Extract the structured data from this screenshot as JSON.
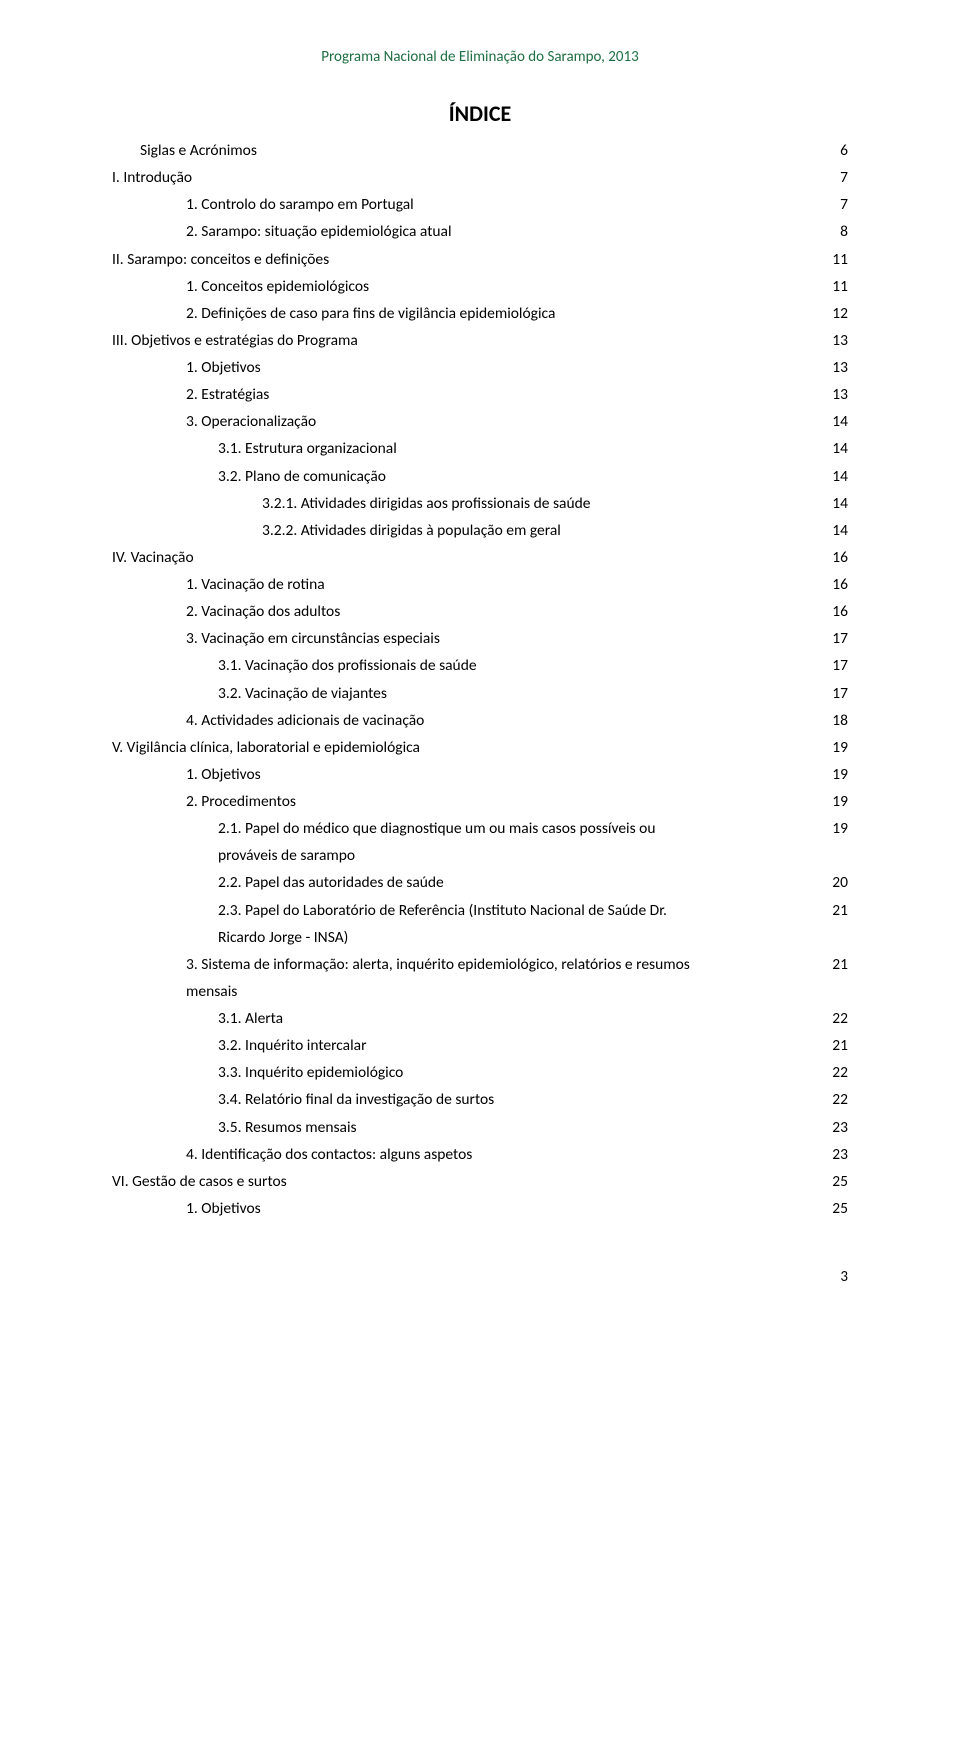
{
  "header": "Programa Nacional de Eliminação do Sarampo, 2013",
  "title": "ÍNDICE",
  "colors": {
    "header_text": "#1f6e43",
    "body_text": "#000000",
    "background": "#ffffff"
  },
  "typography": {
    "body_fontsize_pt": 11.5,
    "title_fontsize_pt": 16,
    "font_family": "Calibri"
  },
  "page_number": "3",
  "toc": [
    {
      "label": "Siglas e Acrónimos",
      "page": "6",
      "indent": "ind-0"
    },
    {
      "label": "I.   Introdução",
      "page": "7",
      "indent": "roman"
    },
    {
      "label": "1.   Controlo do sarampo em Portugal",
      "page": "7",
      "indent": "ind-1"
    },
    {
      "label": "2.   Sarampo: situação epidemiológica atual",
      "page": "8",
      "indent": "ind-1"
    },
    {
      "label": "II.  Sarampo: conceitos e definições",
      "page": "11",
      "indent": "roman"
    },
    {
      "label": "1.   Conceitos epidemiológicos",
      "page": "11",
      "indent": "ind-1"
    },
    {
      "label": "2.   Definições de caso para fins de vigilância epidemiológica",
      "page": "12",
      "indent": "ind-1"
    },
    {
      "label": "III. Objetivos e estratégias do Programa",
      "page": "13",
      "indent": "roman"
    },
    {
      "label": "1.   Objetivos",
      "page": "13",
      "indent": "ind-1"
    },
    {
      "label": "2.   Estratégias",
      "page": "13",
      "indent": "ind-1"
    },
    {
      "label": "3.   Operacionalização",
      "page": "14",
      "indent": "ind-1"
    },
    {
      "label": "3.1. Estrutura organizacional",
      "page": "14",
      "indent": "ind-2"
    },
    {
      "label": "3.2. Plano de comunicação",
      "page": "14",
      "indent": "ind-2"
    },
    {
      "label": "3.2.1. Atividades dirigidas aos profissionais de saúde",
      "page": "14",
      "indent": "ind-3"
    },
    {
      "label": "3.2.2. Atividades dirigidas à população em geral",
      "page": "14",
      "indent": "ind-3"
    },
    {
      "label": "IV. Vacinação",
      "page": "16",
      "indent": "roman"
    },
    {
      "label": "1.   Vacinação de rotina",
      "page": "16",
      "indent": "ind-1"
    },
    {
      "label": "2.   Vacinação dos adultos",
      "page": "16",
      "indent": "ind-1"
    },
    {
      "label": "3.   Vacinação em circunstâncias especiais",
      "page": "17",
      "indent": "ind-1"
    },
    {
      "label": "3.1. Vacinação dos profissionais de saúde",
      "page": "17",
      "indent": "ind-2"
    },
    {
      "label": "3.2. Vacinação de viajantes",
      "page": "17",
      "indent": "ind-2"
    },
    {
      "label": "4.   Actividades adicionais de vacinação",
      "page": "18",
      "indent": "ind-1"
    },
    {
      "label": "V.  Vigilância clínica, laboratorial e epidemiológica",
      "page": "19",
      "indent": "roman"
    },
    {
      "label": "1.   Objetivos",
      "page": "19",
      "indent": "ind-1"
    },
    {
      "label": "2.   Procedimentos",
      "page": "19",
      "indent": "ind-1"
    },
    {
      "label": "2.1. Papel do médico que diagnostique um ou mais casos possíveis ou prováveis de sarampo",
      "page": "19",
      "indent": "ind-2",
      "multiline": true
    },
    {
      "label": "2.2. Papel das autoridades de saúde",
      "page": "20",
      "indent": "ind-2"
    },
    {
      "label": "2.3. Papel do Laboratório de Referência (Instituto Nacional de Saúde Dr. Ricardo Jorge - INSA)",
      "page": "21",
      "indent": "ind-2",
      "multiline": true
    },
    {
      "label": "3.   Sistema de informação: alerta, inquérito epidemiológico, relatórios e resumos mensais",
      "page": "21",
      "indent": "ind-1",
      "multiline1": true
    },
    {
      "label": "3.1. Alerta",
      "page": "22",
      "indent": "ind-2"
    },
    {
      "label": "3.2. Inquérito intercalar",
      "page": "21",
      "indent": "ind-2"
    },
    {
      "label": "3.3. Inquérito epidemiológico",
      "page": "22",
      "indent": "ind-2"
    },
    {
      "label": "3.4. Relatório final da investigação de surtos",
      "page": "22",
      "indent": "ind-2"
    },
    {
      "label": "3.5. Resumos mensais",
      "page": "23",
      "indent": "ind-2"
    },
    {
      "label": "4.   Identificação dos contactos: alguns aspetos",
      "page": "23",
      "indent": "ind-1"
    },
    {
      "label": "VI. Gestão de casos e surtos",
      "page": "25",
      "indent": "roman"
    },
    {
      "label": "1.   Objetivos",
      "page": "25",
      "indent": "ind-1"
    }
  ]
}
